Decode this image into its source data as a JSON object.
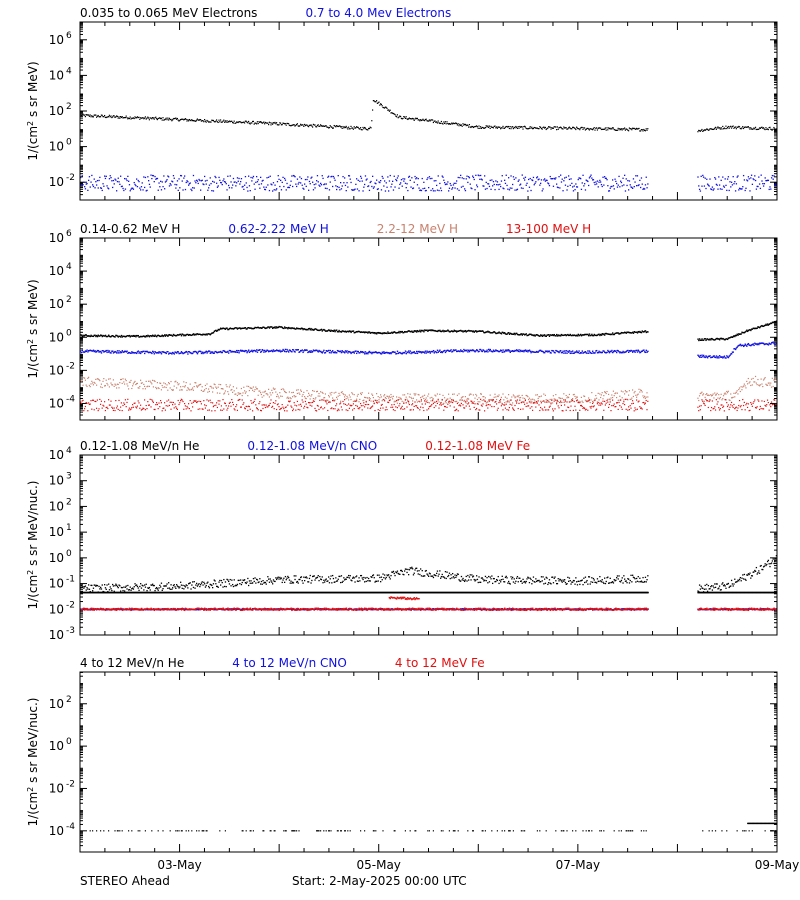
{
  "colors": {
    "black": "#000000",
    "blue": "#1010e0",
    "tan": "#c8826e",
    "red": "#e01010"
  },
  "footer": {
    "spacecraft": "STEREO Ahead",
    "start": "Start:  2-May-2025 00:00 UTC"
  },
  "chart_data": [
    {
      "type": "scatter",
      "legend": [
        {
          "text": "0.035 to 0.065 MeV Electrons",
          "color": "black"
        },
        {
          "text": "0.7 to 4.0 Mev Electrons",
          "color": "blue"
        }
      ],
      "ylabel_html": "1/(cm<tspan baseline-shift=\"super\" font-size=\"8\">2</tspan> s sr MeV)",
      "ylim_log10": [
        -3,
        7
      ],
      "yticks": [
        {
          "exp": "6",
          "log": 6
        },
        {
          "exp": "4",
          "log": 4
        },
        {
          "exp": "2",
          "log": 2
        },
        {
          "exp": "0",
          "log": 0
        },
        {
          "exp": "-2",
          "log": -2
        }
      ],
      "series": [
        {
          "color": "black",
          "width": 1.2,
          "spread": 0.08,
          "segments": [
            [
              [
                0.0,
                1.75
              ],
              [
                1.9,
                1.3
              ],
              [
                2.9,
                1.0
              ],
              [
                2.92,
                1.15
              ],
              [
                2.94,
                2.65
              ],
              [
                3.2,
                1.65
              ],
              [
                4.0,
                1.1
              ],
              [
                5.7,
                0.95
              ]
            ],
            [
              [
                6.2,
                0.9
              ],
              [
                6.5,
                1.1
              ],
              [
                7.0,
                1.0
              ]
            ]
          ]
        },
        {
          "color": "blue",
          "width": 1.3,
          "spread": 0.45,
          "segments": [
            [
              [
                0.0,
                -2.05
              ],
              [
                5.7,
                -2.05
              ]
            ],
            [
              [
                6.2,
                -2.05
              ],
              [
                7.0,
                -2.05
              ]
            ]
          ]
        }
      ]
    },
    {
      "type": "scatter",
      "legend": [
        {
          "text": "0.14-0.62 MeV H",
          "color": "black"
        },
        {
          "text": "0.62-2.22 MeV H",
          "color": "blue"
        },
        {
          "text": "2.2-12 MeV H",
          "color": "tan"
        },
        {
          "text": "13-100 MeV H",
          "color": "red"
        }
      ],
      "ylabel_html": "1/(cm<tspan baseline-shift=\"super\" font-size=\"8\">2</tspan> s sr MeV)",
      "ylim_log10": [
        -5,
        6
      ],
      "yticks": [
        {
          "exp": "6",
          "log": 6
        },
        {
          "exp": "4",
          "log": 4
        },
        {
          "exp": "2",
          "log": 2
        },
        {
          "exp": "0",
          "log": 0
        },
        {
          "exp": "-2",
          "log": -2
        },
        {
          "exp": "-4",
          "log": -4
        }
      ],
      "series": [
        {
          "color": "black",
          "width": 1.4,
          "spread": 0.05,
          "segments": [
            [
              [
                0.0,
                0.1
              ],
              [
                0.6,
                0.05
              ],
              [
                1.3,
                0.2
              ],
              [
                1.4,
                0.5
              ],
              [
                2.0,
                0.6
              ],
              [
                2.5,
                0.4
              ],
              [
                3.0,
                0.25
              ],
              [
                3.5,
                0.4
              ],
              [
                4.0,
                0.35
              ],
              [
                4.6,
                0.1
              ],
              [
                5.2,
                0.15
              ],
              [
                5.7,
                0.35
              ]
            ],
            [
              [
                6.2,
                -0.15
              ],
              [
                6.5,
                -0.1
              ],
              [
                6.7,
                0.4
              ],
              [
                7.0,
                0.95
              ]
            ]
          ]
        },
        {
          "color": "blue",
          "width": 1.4,
          "spread": 0.08,
          "segments": [
            [
              [
                0.0,
                -0.85
              ],
              [
                1.0,
                -0.95
              ],
              [
                2.0,
                -0.8
              ],
              [
                3.0,
                -0.95
              ],
              [
                4.0,
                -0.8
              ],
              [
                5.0,
                -0.9
              ],
              [
                5.7,
                -0.85
              ]
            ],
            [
              [
                6.2,
                -1.15
              ],
              [
                6.5,
                -1.2
              ],
              [
                6.6,
                -0.5
              ],
              [
                7.0,
                -0.35
              ]
            ]
          ]
        },
        {
          "color": "tan",
          "width": 1.2,
          "spread": 0.3,
          "segments": [
            [
              [
                0.0,
                -2.7
              ],
              [
                1.0,
                -2.95
              ],
              [
                1.3,
                -3.1
              ],
              [
                2.0,
                -3.4
              ],
              [
                3.0,
                -3.7
              ],
              [
                5.0,
                -3.7
              ],
              [
                5.7,
                -3.4
              ]
            ],
            [
              [
                6.2,
                -3.6
              ],
              [
                6.6,
                -3.5
              ],
              [
                6.7,
                -2.6
              ],
              [
                7.0,
                -2.8
              ]
            ]
          ]
        },
        {
          "color": "red",
          "width": 1.2,
          "spread": 0.35,
          "segments": [
            [
              [
                0.0,
                -4.1
              ],
              [
                5.7,
                -4.1
              ]
            ],
            [
              [
                6.2,
                -4.1
              ],
              [
                7.0,
                -4.1
              ]
            ]
          ]
        }
      ]
    },
    {
      "type": "scatter",
      "legend": [
        {
          "text": "0.12-1.08 MeV/n He",
          "color": "black"
        },
        {
          "text": "0.12-1.08 MeV/n CNO",
          "color": "blue"
        },
        {
          "text": "0.12-1.08 MeV Fe",
          "color": "red"
        }
      ],
      "ylabel_html": "1/(cm<tspan baseline-shift=\"super\" font-size=\"8\">2</tspan> s sr MeV/nuc.)",
      "ylim_log10": [
        -3,
        4
      ],
      "yticks": [
        {
          "exp": "4",
          "log": 4
        },
        {
          "exp": "3",
          "log": 3
        },
        {
          "exp": "2",
          "log": 2
        },
        {
          "exp": "1",
          "log": 1
        },
        {
          "exp": "0",
          "log": 0
        },
        {
          "exp": "-1",
          "log": -1
        },
        {
          "exp": "-2",
          "log": -2
        },
        {
          "exp": "-3",
          "log": -3
        }
      ],
      "series": [
        {
          "color": "black",
          "width": 1.3,
          "spread": 0.15,
          "segments": [
            [
              [
                0.0,
                -1.2
              ],
              [
                1.0,
                -1.1
              ],
              [
                2.0,
                -0.85
              ],
              [
                3.0,
                -0.8
              ],
              [
                3.3,
                -0.5
              ],
              [
                4.0,
                -0.85
              ],
              [
                5.0,
                -0.9
              ],
              [
                5.7,
                -0.8
              ]
            ],
            [
              [
                6.2,
                -1.2
              ],
              [
                6.5,
                -1.1
              ],
              [
                6.8,
                -0.5
              ],
              [
                7.0,
                0.0
              ]
            ]
          ]
        },
        {
          "color": "black",
          "width": 1.6,
          "spread": 0.0,
          "segments": [
            [
              [
                0.0,
                -1.35
              ],
              [
                5.7,
                -1.35
              ]
            ],
            [
              [
                6.2,
                -1.35
              ],
              [
                7.0,
                -1.35
              ]
            ]
          ]
        },
        {
          "color": "blue",
          "width": 1.5,
          "spread": 0.02,
          "segments": [
            [
              [
                0.0,
                -2.0
              ],
              [
                5.7,
                -2.0
              ]
            ],
            [
              [
                6.2,
                -2.0
              ],
              [
                7.0,
                -2.0
              ]
            ]
          ]
        },
        {
          "color": "red",
          "width": 1.5,
          "spread": 0.04,
          "segments": [
            [
              [
                0.0,
                -2.0
              ],
              [
                5.7,
                -2.0
              ]
            ],
            [
              [
                3.1,
                -1.55
              ],
              [
                3.4,
                -1.6
              ]
            ],
            [
              [
                6.2,
                -2.0
              ],
              [
                7.0,
                -2.0
              ]
            ]
          ]
        }
      ]
    },
    {
      "type": "scatter",
      "legend": [
        {
          "text": "4 to 12 MeV/n He",
          "color": "black"
        },
        {
          "text": "4 to 12 MeV/n CNO",
          "color": "blue"
        },
        {
          "text": "4 to 12 MeV Fe",
          "color": "red"
        }
      ],
      "ylabel_html": "1/(cm<tspan baseline-shift=\"super\" font-size=\"8\">2</tspan> s sr MeV/nuc.)",
      "ylim_log10": [
        -5,
        3.5
      ],
      "yticks": [
        {
          "exp": "2",
          "log": 2
        },
        {
          "exp": "0",
          "log": 0
        },
        {
          "exp": "-2",
          "log": -2
        },
        {
          "exp": "-4",
          "log": -4
        }
      ],
      "series": [
        {
          "color": "black",
          "width": 1.2,
          "spread": 0.0,
          "density": 0.18,
          "segments": [
            [
              [
                0.0,
                -4.0
              ],
              [
                5.7,
                -4.0
              ]
            ],
            [
              [
                6.2,
                -4.0
              ],
              [
                7.0,
                -4.0
              ]
            ]
          ]
        },
        {
          "color": "black",
          "width": 1.4,
          "spread": 0.0,
          "segments": [
            [
              [
                6.7,
                -3.65
              ],
              [
                7.0,
                -3.65
              ]
            ]
          ]
        }
      ]
    }
  ],
  "x_axis": {
    "range_days": [
      0,
      7
    ],
    "ticks": [
      {
        "label": "03-May",
        "day": 1
      },
      {
        "label": "05-May",
        "day": 3
      },
      {
        "label": "07-May",
        "day": 5
      },
      {
        "label": "09-May",
        "day": 7
      }
    ]
  }
}
